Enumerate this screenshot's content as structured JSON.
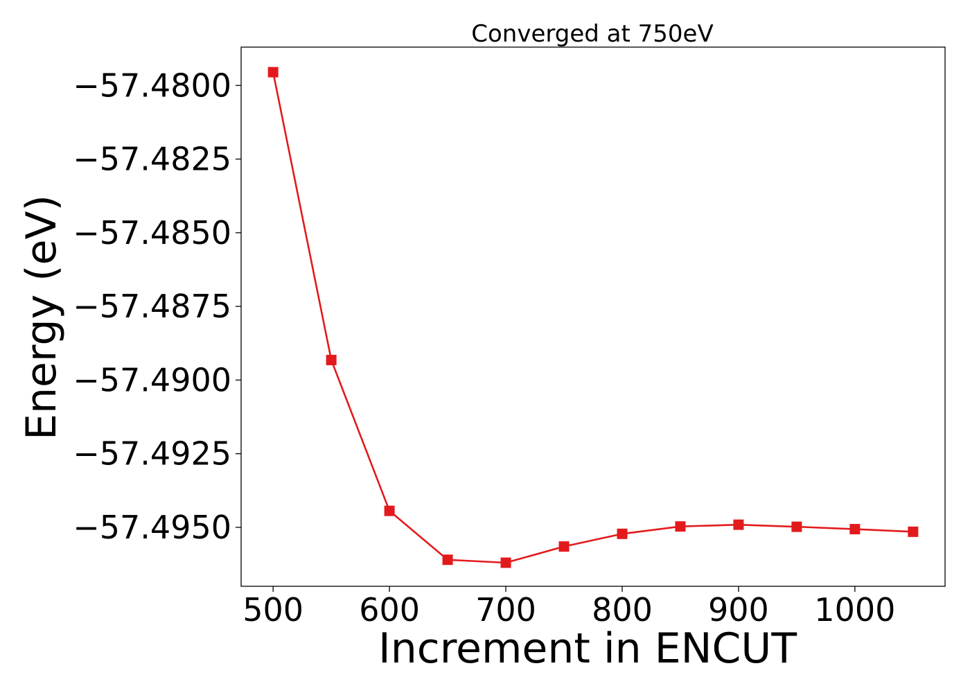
{
  "chart_data": {
    "type": "line",
    "title": "Converged at 750eV",
    "xlabel": "Increment in ENCUT",
    "ylabel": "Energy (eV)",
    "xlim": [
      472.5,
      1077.5
    ],
    "ylim": [
      -57.497,
      -57.4787
    ],
    "x_ticks": [
      500,
      600,
      700,
      800,
      900,
      1000
    ],
    "x_tick_labels": [
      "500",
      "600",
      "700",
      "800",
      "900",
      "1000"
    ],
    "y_ticks": [
      -57.48,
      -57.4825,
      -57.485,
      -57.4875,
      -57.49,
      -57.4925,
      -57.495
    ],
    "y_tick_labels": [
      "−57.4800",
      "−57.4825",
      "−57.4850",
      "−57.4875",
      "−57.4900",
      "−57.4925",
      "−57.4950"
    ],
    "grid": false,
    "legend": "none",
    "series": [
      {
        "color": "#e31a1c",
        "marker": "square",
        "x": [
          500,
          550,
          600,
          650,
          700,
          750,
          800,
          850,
          900,
          950,
          1000,
          1050
        ],
        "y": [
          -57.47955,
          -57.48932,
          -57.49444,
          -57.4961,
          -57.4962,
          -57.49565,
          -57.49522,
          -57.49497,
          -57.49491,
          -57.49498,
          -57.49506,
          -57.49515
        ]
      }
    ]
  }
}
